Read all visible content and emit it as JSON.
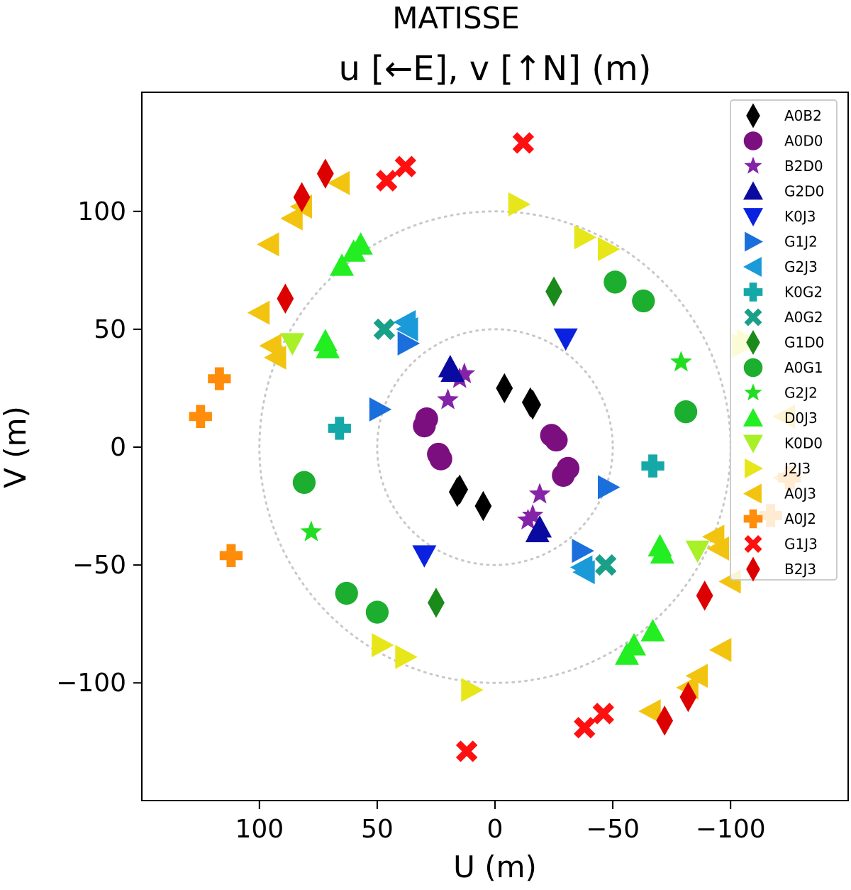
{
  "chart_data": {
    "type": "scatter",
    "title": "MATISSE",
    "subtitle": "u [←E], v [↑N] (m)",
    "xlabel": "U (m)",
    "ylabel": "V (m)",
    "x_inverted": true,
    "xlim": [
      150,
      -150
    ],
    "ylim": [
      -150,
      145
    ],
    "xticks": [
      100,
      50,
      0,
      -50,
      -100
    ],
    "xtick_labels": [
      "100",
      "50",
      "0",
      "−50",
      "−100"
    ],
    "yticks": [
      100,
      50,
      0,
      -50,
      -100
    ],
    "ytick_labels": [
      "100",
      "50",
      "0",
      "−50",
      "−100"
    ],
    "grid": false,
    "legend_position": "top-right",
    "reference_circles": [
      50,
      100
    ],
    "series": [
      {
        "name": "A0B2",
        "color": "#000000",
        "marker": "thin-diamond",
        "points": [
          [
            -4,
            25
          ],
          [
            -15,
            19
          ],
          [
            -16,
            18
          ],
          [
            16,
            -19
          ],
          [
            15,
            -18
          ],
          [
            5,
            -25
          ]
        ]
      },
      {
        "name": "A0D0",
        "color": "#7b0f80",
        "marker": "circle",
        "points": [
          [
            29,
            12
          ],
          [
            30,
            9
          ],
          [
            24,
            -3
          ],
          [
            23,
            -5
          ],
          [
            -24,
            5
          ],
          [
            -26,
            3
          ],
          [
            -31,
            -9
          ],
          [
            -29,
            -12
          ]
        ]
      },
      {
        "name": "B2D0",
        "color": "#8523a8",
        "marker": "star",
        "points": [
          [
            13,
            31
          ],
          [
            15,
            29
          ],
          [
            20,
            20
          ],
          [
            -19,
            -20
          ],
          [
            -16,
            -29
          ],
          [
            -14,
            -31
          ]
        ]
      },
      {
        "name": "G2D0",
        "color": "#0a0aa0",
        "marker": "triangle-up",
        "points": [
          [
            19,
            34
          ],
          [
            18,
            32
          ],
          [
            -19,
            -34
          ],
          [
            -18,
            -36
          ]
        ]
      },
      {
        "name": "K0J3",
        "color": "#0a22e0",
        "marker": "triangle-down",
        "points": [
          [
            -30,
            46
          ],
          [
            30,
            -46
          ]
        ]
      },
      {
        "name": "G1J2",
        "color": "#1b6fdc",
        "marker": "triangle-right",
        "points": [
          [
            37,
            44
          ],
          [
            49,
            16
          ],
          [
            -48,
            -17
          ],
          [
            -37,
            -44
          ]
        ]
      },
      {
        "name": "G2J3",
        "color": "#1a9ad8",
        "marker": "triangle-left",
        "points": [
          [
            38,
            53
          ],
          [
            37,
            50
          ],
          [
            -37,
            -51
          ],
          [
            -38,
            -53
          ]
        ]
      },
      {
        "name": "K0G2",
        "color": "#15a8a8",
        "marker": "plus",
        "points": [
          [
            66,
            8
          ],
          [
            -67,
            -8
          ]
        ]
      },
      {
        "name": "A0G2",
        "color": "#1aa088",
        "marker": "x",
        "points": [
          [
            47,
            50
          ],
          [
            -47,
            -50
          ]
        ]
      },
      {
        "name": "G1D0",
        "color": "#1a8a1a",
        "marker": "thin-diamond",
        "points": [
          [
            -25,
            66
          ],
          [
            25,
            -66
          ]
        ]
      },
      {
        "name": "A0G1",
        "color": "#1cae2e",
        "marker": "circle",
        "points": [
          [
            -51,
            70
          ],
          [
            -63,
            62
          ],
          [
            -81,
            15
          ],
          [
            81,
            -15
          ],
          [
            63,
            -62
          ],
          [
            50,
            -70
          ]
        ]
      },
      {
        "name": "G2J2",
        "color": "#22dd22",
        "marker": "star",
        "points": [
          [
            -79,
            36
          ],
          [
            78,
            -36
          ]
        ]
      },
      {
        "name": "D0J3",
        "color": "#22ee22",
        "marker": "triangle-up",
        "points": [
          [
            57,
            86
          ],
          [
            60,
            83
          ],
          [
            65,
            77
          ],
          [
            72,
            45
          ],
          [
            71,
            42
          ],
          [
            -71,
            -45
          ],
          [
            -70,
            -42
          ],
          [
            -67,
            -78
          ],
          [
            -59,
            -84
          ],
          [
            -56,
            -88
          ]
        ]
      },
      {
        "name": "K0D0",
        "color": "#a8f028",
        "marker": "triangle-down",
        "points": [
          [
            86,
            44
          ],
          [
            -86,
            -44
          ]
        ]
      },
      {
        "name": "J2J3",
        "color": "#e6e61a",
        "marker": "triangle-right",
        "points": [
          [
            -10,
            103
          ],
          [
            -38,
            89
          ],
          [
            -48,
            84
          ],
          [
            10,
            -103
          ],
          [
            38,
            -89
          ],
          [
            48,
            -84
          ],
          [
            -107,
            45
          ],
          [
            -105,
            43
          ]
        ]
      },
      {
        "name": "A0J3",
        "color": "#f2c40f",
        "marker": "triangle-left",
        "points": [
          [
            66,
            112
          ],
          [
            82,
            102
          ],
          [
            86,
            97
          ],
          [
            96,
            86
          ],
          [
            100,
            57
          ],
          [
            95,
            43
          ],
          [
            93,
            38
          ],
          [
            -82,
            -102
          ],
          [
            -86,
            -97
          ],
          [
            -96,
            -86
          ],
          [
            -100,
            -57
          ],
          [
            -95,
            -43
          ],
          [
            -93,
            -38
          ],
          [
            -66,
            -112
          ],
          [
            -123,
            -13
          ],
          [
            -123,
            13
          ]
        ]
      },
      {
        "name": "A0J2",
        "color": "#ff8c0a",
        "marker": "plus",
        "points": [
          [
            117,
            29
          ],
          [
            125,
            13
          ],
          [
            112,
            -46
          ],
          [
            -117,
            -29
          ],
          [
            -125,
            -13
          ]
        ]
      },
      {
        "name": "G1J3",
        "color": "#ff1010",
        "marker": "x",
        "points": [
          [
            -12,
            129
          ],
          [
            38,
            119
          ],
          [
            46,
            113
          ],
          [
            -46,
            -113
          ],
          [
            -38,
            -119
          ],
          [
            12,
            -129
          ]
        ]
      },
      {
        "name": "B2J3",
        "color": "#dd0000",
        "marker": "thin-diamond",
        "points": [
          [
            72,
            116
          ],
          [
            82,
            106
          ],
          [
            89,
            63
          ],
          [
            -89,
            -63
          ],
          [
            -82,
            -106
          ],
          [
            -72,
            -116
          ]
        ]
      }
    ]
  }
}
